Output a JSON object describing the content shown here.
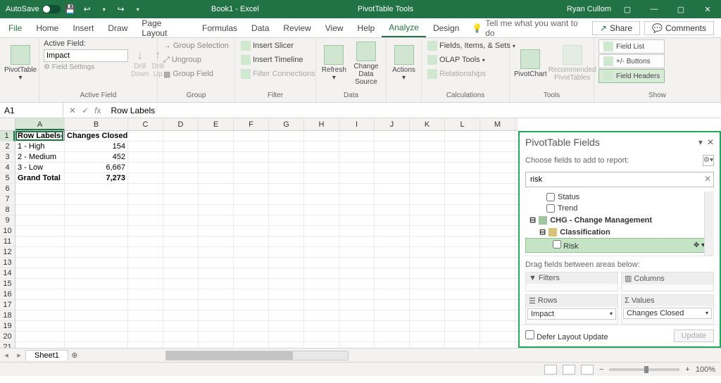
{
  "title": {
    "autosave": "AutoSave",
    "book": "Book1 - Excel",
    "context": "PivotTable Tools",
    "user": "Ryan Cullom"
  },
  "tabs": {
    "file": "File",
    "home": "Home",
    "insert": "Insert",
    "draw": "Draw",
    "page": "Page Layout",
    "formulas": "Formulas",
    "data": "Data",
    "review": "Review",
    "view": "View",
    "help": "Help",
    "analyze": "Analyze",
    "design": "Design",
    "tellme": "Tell me what you want to do",
    "share": "Share",
    "comments": "Comments"
  },
  "ribbon": {
    "pivotTable": "PivotTable",
    "activeFieldLabel": "Active Field:",
    "activeField": "Impact",
    "fieldSettings": "Field Settings",
    "drillDown": "Drill Down",
    "drillUp": "Drill Up",
    "groupSelection": "Group Selection",
    "ungroup": "Ungroup",
    "groupField": "Group Field",
    "insertSlicer": "Insert Slicer",
    "insertTimeline": "Insert Timeline",
    "filterConn": "Filter Connections",
    "refresh": "Refresh",
    "changeData": "Change Data Source",
    "actions": "Actions",
    "fieldsItems": "Fields, Items, & Sets",
    "olap": "OLAP Tools",
    "relationships": "Relationships",
    "pivotChart": "PivotChart",
    "recommended": "Recommended PivotTables",
    "fieldList": "Field List",
    "plusminus": "+/- Buttons",
    "fieldHeaders": "Field Headers",
    "groups": {
      "activeField": "Active Field",
      "group": "Group",
      "filter": "Filter",
      "data": "Data",
      "calculations": "Calculations",
      "tools": "Tools",
      "show": "Show"
    }
  },
  "formula": {
    "namebox": "A1",
    "value": "Row Labels"
  },
  "cols": [
    "A",
    "B",
    "C",
    "D",
    "E",
    "F",
    "G",
    "H",
    "I",
    "J",
    "K",
    "L",
    "M"
  ],
  "grid": {
    "h1": "Row Labels",
    "h2": "Changes Closed",
    "r1a": "1 - High",
    "r1b": "154",
    "r2a": "2 - Medium",
    "r2b": "452",
    "r3a": "3 - Low",
    "r3b": "6,667",
    "r4a": "Grand Total",
    "r4b": "7,273"
  },
  "pane": {
    "title": "PivotTable Fields",
    "choose": "Choose fields to add to report:",
    "search": "risk",
    "status": "Status",
    "trend": "Trend",
    "chg": "CHG - Change Management",
    "classification": "Classification",
    "risk": "Risk",
    "drag": "Drag fields between areas below:",
    "filters": "Filters",
    "columns": "Columns",
    "rows": "Rows",
    "values": "Values",
    "rowsPill": "Impact",
    "valuesPill": "Changes Closed",
    "defer": "Defer Layout Update",
    "update": "Update"
  },
  "sheet": {
    "name": "Sheet1"
  },
  "status": {
    "zoom": "100%"
  }
}
